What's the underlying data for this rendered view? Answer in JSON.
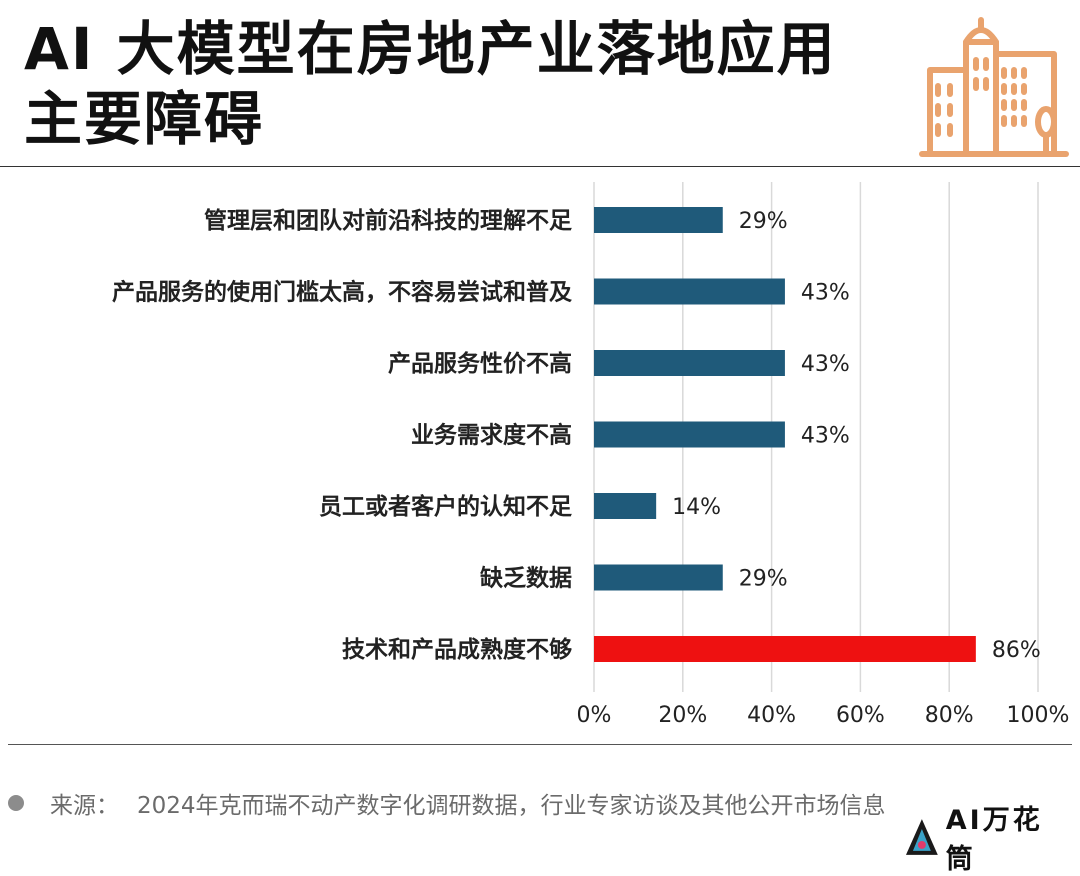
{
  "header": {
    "title_line1": "AI 大模型在房地产业落地应用",
    "title_line2": "主要障碍",
    "icon": "building-icon",
    "icon_color": "#E9A36E"
  },
  "chart_data": {
    "type": "bar",
    "orientation": "horizontal",
    "categories": [
      "管理层和团队对前沿科技的理解不足",
      "产品服务的使用门槛太高，不容易尝试和普及",
      "产品服务性价不高",
      "业务需求度不高",
      "员工或者客户的认知不足",
      "缺乏数据",
      "技术和产品成熟度不够"
    ],
    "values": [
      29,
      43,
      43,
      43,
      14,
      29,
      86
    ],
    "value_labels": [
      "29%",
      "43%",
      "43%",
      "43%",
      "14%",
      "29%",
      "86%"
    ],
    "colors": [
      "#1F5A7A",
      "#1F5A7A",
      "#1F5A7A",
      "#1F5A7A",
      "#1F5A7A",
      "#1F5A7A",
      "#EE1111"
    ],
    "xlim": [
      0,
      100
    ],
    "xticks": [
      "0%",
      "20%",
      "40%",
      "60%",
      "80%",
      "100%"
    ],
    "grid": true
  },
  "footer": {
    "source_prefix": "来源：",
    "source_text": "2024年克而瑞不动产数字化调研数据，行业专家访谈及其他公开市场信息",
    "logo_text": "AI万花筒"
  }
}
